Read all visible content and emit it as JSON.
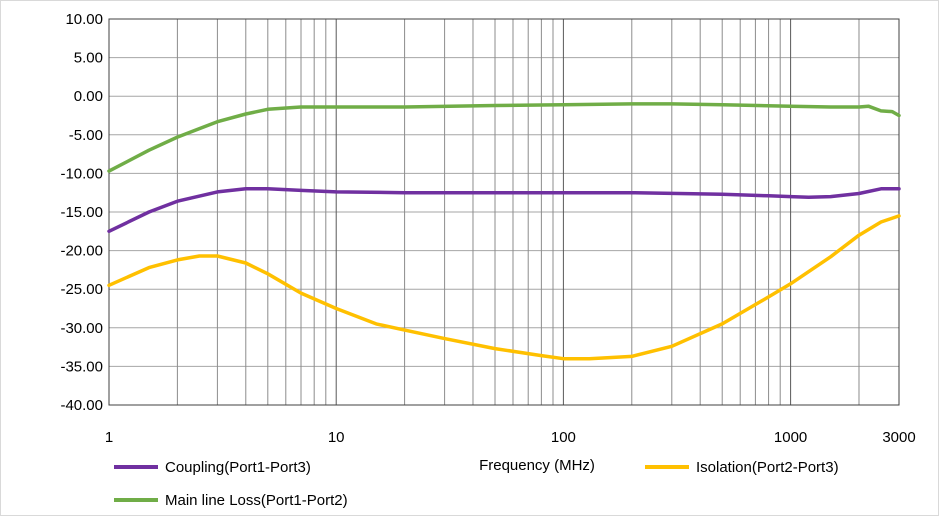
{
  "chart_data": {
    "type": "line",
    "title": "",
    "xlabel": "Frequency (MHz)",
    "ylabel": "",
    "xscale": "log",
    "xlim": [
      1,
      3000
    ],
    "ylim": [
      -40,
      10
    ],
    "grid": true,
    "legend_position": "bottom",
    "x_tick_labels": [
      "1",
      "10",
      "100",
      "1000",
      "3000"
    ],
    "x_tick_values": [
      1,
      10,
      100,
      1000,
      3000
    ],
    "y_tick_labels": [
      "10.00",
      "5.00",
      "0.00",
      "-5.00",
      "-10.00",
      "-15.00",
      "-20.00",
      "-25.00",
      "-30.00",
      "-35.00",
      "-40.00"
    ],
    "y_tick_values": [
      10,
      5,
      0,
      -5,
      -10,
      -15,
      -20,
      -25,
      -30,
      -35,
      -40
    ],
    "series": [
      {
        "name": "Coupling(Port1-Port3)",
        "color": "#7030a0",
        "x": [
          1,
          1.5,
          2,
          3,
          4,
          5,
          7,
          10,
          20,
          50,
          100,
          200,
          500,
          800,
          1000,
          1200,
          1500,
          2000,
          2500,
          3000
        ],
        "y": [
          -17.5,
          -15.0,
          -13.6,
          -12.4,
          -12.0,
          -12.0,
          -12.2,
          -12.4,
          -12.5,
          -12.5,
          -12.5,
          -12.5,
          -12.7,
          -12.9,
          -13.0,
          -13.1,
          -13.0,
          -12.6,
          -12.0,
          -12.0
        ]
      },
      {
        "name": "Isolation(Port2-Port3)",
        "color": "#ffc000",
        "x": [
          1,
          1.5,
          2,
          2.5,
          3,
          4,
          5,
          7,
          10,
          15,
          20,
          30,
          50,
          80,
          100,
          130,
          200,
          300,
          500,
          800,
          1000,
          1500,
          2000,
          2500,
          3000
        ],
        "y": [
          -24.5,
          -22.2,
          -21.2,
          -20.7,
          -20.7,
          -21.6,
          -23.0,
          -25.5,
          -27.5,
          -29.5,
          -30.3,
          -31.4,
          -32.7,
          -33.6,
          -34.0,
          -34.0,
          -33.7,
          -32.4,
          -29.5,
          -26.0,
          -24.3,
          -20.8,
          -18.0,
          -16.3,
          -15.5
        ]
      },
      {
        "name": "Main line Loss(Port1-Port2)",
        "color": "#70ad47",
        "x": [
          1,
          1.5,
          2,
          3,
          4,
          5,
          7,
          10,
          20,
          50,
          100,
          200,
          300,
          500,
          1000,
          1500,
          2000,
          2200,
          2500,
          2800,
          3000
        ],
        "y": [
          -9.7,
          -7.0,
          -5.3,
          -3.3,
          -2.3,
          -1.7,
          -1.4,
          -1.4,
          -1.4,
          -1.2,
          -1.1,
          -1.0,
          -1.0,
          -1.1,
          -1.3,
          -1.4,
          -1.4,
          -1.3,
          -1.9,
          -2.0,
          -2.5
        ]
      }
    ]
  }
}
